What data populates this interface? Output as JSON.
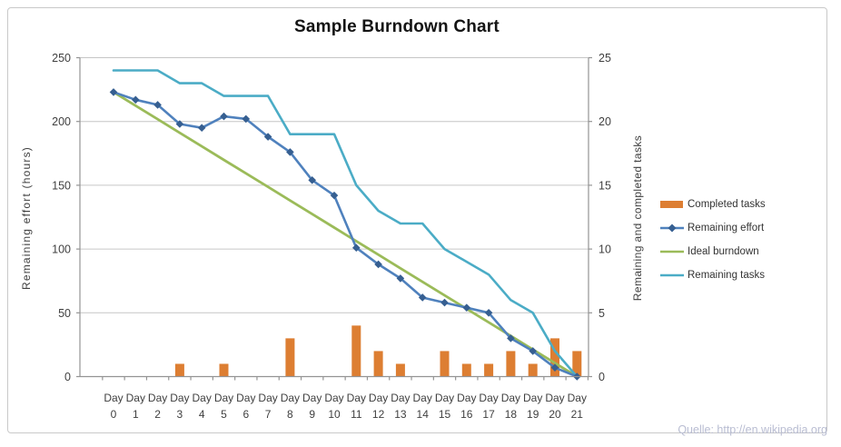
{
  "frame": {
    "source": "Quelle: http://en.wikipedia.org"
  },
  "chart_data": {
    "type": "combo",
    "title": "Sample Burndown Chart",
    "categories": [
      "Day 0",
      "Day 1",
      "Day 2",
      "Day 3",
      "Day 4",
      "Day 5",
      "Day 6",
      "Day 7",
      "Day 8",
      "Day 9",
      "Day 10",
      "Day 11",
      "Day 12",
      "Day 13",
      "Day 14",
      "Day 15",
      "Day 16",
      "Day 17",
      "Day 18",
      "Day 19",
      "Day 20",
      "Day 21"
    ],
    "x_label_word": "Day",
    "left_axis": {
      "title": "Remaining effort (hours)",
      "min": 0,
      "max": 250,
      "ticks": [
        0,
        50,
        100,
        150,
        200,
        250
      ]
    },
    "right_axis": {
      "title": "Remaining and completed tasks",
      "min": 0,
      "max": 25,
      "ticks": [
        0,
        5,
        10,
        15,
        20,
        25
      ]
    },
    "grid": true,
    "legend_position": "right",
    "series": [
      {
        "name": "Completed tasks",
        "type": "bar",
        "axis": "right",
        "color": "#dd7e32",
        "values": [
          0,
          0,
          0,
          1,
          0,
          1,
          0,
          0,
          3,
          0,
          0,
          4,
          2,
          1,
          0,
          2,
          1,
          1,
          2,
          1,
          3,
          2
        ]
      },
      {
        "name": "Remaining effort",
        "type": "line",
        "axis": "left",
        "color": "#4f81bd",
        "marker": "diamond",
        "marker_color": "#365f91",
        "values": [
          223,
          217,
          213,
          198,
          195,
          204,
          202,
          188,
          176,
          154,
          142,
          101,
          88,
          77,
          62,
          58,
          54,
          50,
          30,
          20,
          7,
          0
        ]
      },
      {
        "name": "Ideal burndown",
        "type": "line",
        "axis": "left",
        "color": "#9bbb59",
        "marker": "none",
        "values": [
          223,
          212.4,
          201.8,
          191.1,
          180.5,
          169.9,
          159.3,
          148.7,
          138,
          127.4,
          116.8,
          106.2,
          95.6,
          84.9,
          74.3,
          63.7,
          53.1,
          42.5,
          31.9,
          21.2,
          10.6,
          0
        ]
      },
      {
        "name": "Remaining tasks",
        "type": "line",
        "axis": "right",
        "color": "#4bacc6",
        "marker": "none",
        "values": [
          24,
          24,
          24,
          23,
          23,
          22,
          22,
          22,
          19,
          19,
          19,
          15,
          13,
          12,
          12,
          10,
          9,
          8,
          6,
          5,
          2,
          0
        ]
      }
    ],
    "style": {
      "gridline_color": "#c6c6c6",
      "axis_color": "#949494",
      "tick_text_color": "#3f3f3f",
      "title_color": "#141414",
      "source_color": "#b9bdd2",
      "border_color": "#c9c9c9"
    }
  }
}
